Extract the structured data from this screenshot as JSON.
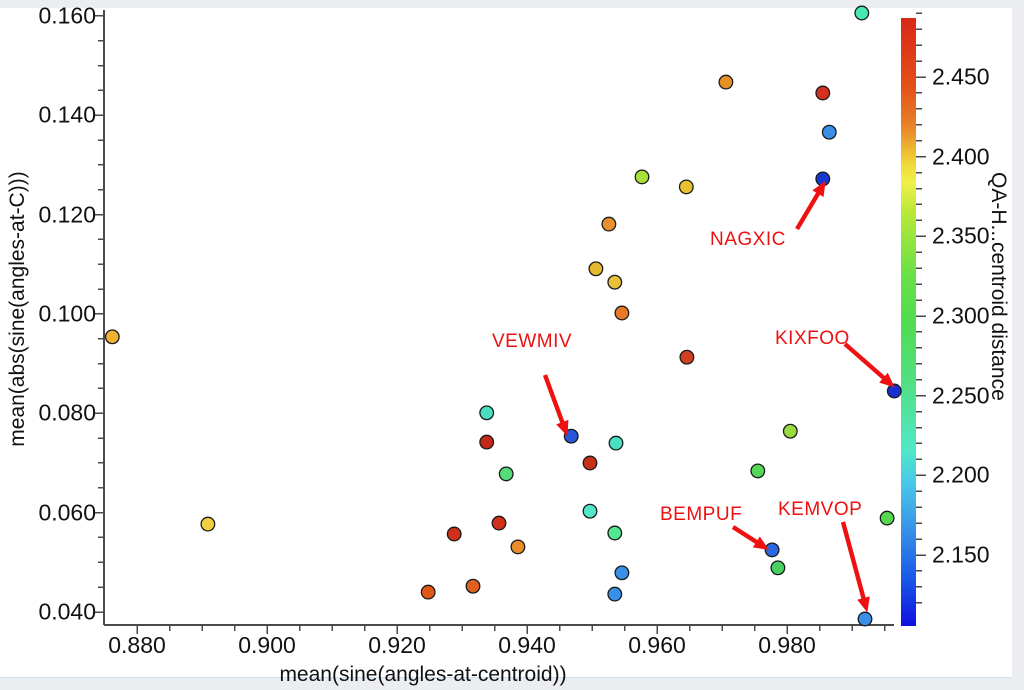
{
  "chart_data": {
    "type": "scatter",
    "xlabel": "mean(sine(angles-at-centroid))",
    "ylabel": "mean(abs(sine(angles-at-C)))",
    "colorbar_label": "QA-H...centroid distance",
    "xlim": [
      0.875,
      0.997
    ],
    "ylim": [
      0.038,
      0.162
    ],
    "grid": false,
    "legend": "colorbar-right",
    "x_ticks": [
      0.88,
      0.9,
      0.92,
      0.94,
      0.96,
      0.98
    ],
    "x_tick_labels": [
      "0.880",
      "0.900",
      "0.920",
      "0.940",
      "0.960",
      "0.980"
    ],
    "y_ticks": [
      0.04,
      0.06,
      0.08,
      0.1,
      0.12,
      0.14,
      0.16
    ],
    "y_tick_labels": [
      "0.040",
      "0.060",
      "0.080",
      "0.100",
      "0.120",
      "0.140",
      "0.160"
    ],
    "colorbar": {
      "min": 2.11,
      "max": 2.492,
      "tick_values": [
        2.15,
        2.2,
        2.25,
        2.3,
        2.35,
        2.4,
        2.45
      ],
      "tick_labels": [
        "2.150",
        "2.200",
        "2.250",
        "2.300",
        "2.350",
        "2.400",
        "2.450"
      ],
      "minor_step": 0.01,
      "colormap": "jet (blue-cyan-green-yellow-orange-red)"
    },
    "points": [
      {
        "x": 0.8762,
        "y": 0.0954,
        "c": 2.42,
        "color": "#F0B030"
      },
      {
        "x": 0.8909,
        "y": 0.0577,
        "c": 2.4,
        "color": "#F0D040"
      },
      {
        "x": 0.9248,
        "y": 0.044,
        "c": 2.45,
        "color": "#E05818"
      },
      {
        "x": 0.9288,
        "y": 0.0557,
        "c": 2.46,
        "color": "#D03018"
      },
      {
        "x": 0.9317,
        "y": 0.0452,
        "c": 2.45,
        "color": "#E06020"
      },
      {
        "x": 0.9338,
        "y": 0.0801,
        "c": 2.21,
        "color": "#48E0C0"
      },
      {
        "x": 0.9338,
        "y": 0.0742,
        "c": 2.47,
        "color": "#C42818"
      },
      {
        "x": 0.9357,
        "y": 0.0579,
        "c": 2.46,
        "color": "#D03018"
      },
      {
        "x": 0.9368,
        "y": 0.0678,
        "c": 2.28,
        "color": "#55DC78"
      },
      {
        "x": 0.9386,
        "y": 0.0531,
        "c": 2.43,
        "color": "#E88D28"
      },
      {
        "x": 0.9468,
        "y": 0.0754,
        "c": 2.15,
        "color": "#2858D8",
        "name": "VEWMIV"
      },
      {
        "x": 0.9497,
        "y": 0.07,
        "c": 2.46,
        "color": "#C83018"
      },
      {
        "x": 0.9497,
        "y": 0.0603,
        "c": 2.21,
        "color": "#50E8C8"
      },
      {
        "x": 0.9506,
        "y": 0.1091,
        "c": 2.41,
        "color": "#E8B830"
      },
      {
        "x": 0.9526,
        "y": 0.1181,
        "c": 2.43,
        "color": "#E89030"
      },
      {
        "x": 0.9535,
        "y": 0.1064,
        "c": 2.41,
        "color": "#E8C038"
      },
      {
        "x": 0.9535,
        "y": 0.0559,
        "c": 2.25,
        "color": "#50E890"
      },
      {
        "x": 0.9535,
        "y": 0.0436,
        "c": 2.17,
        "color": "#3890E8"
      },
      {
        "x": 0.9537,
        "y": 0.074,
        "c": 2.21,
        "color": "#48E0C0"
      },
      {
        "x": 0.9546,
        "y": 0.1002,
        "c": 2.44,
        "color": "#E87828"
      },
      {
        "x": 0.9546,
        "y": 0.0479,
        "c": 2.17,
        "color": "#3890E8"
      },
      {
        "x": 0.9577,
        "y": 0.1276,
        "c": 2.37,
        "color": "#A6E038"
      },
      {
        "x": 0.9645,
        "y": 0.1256,
        "c": 2.41,
        "color": "#E8C030"
      },
      {
        "x": 0.9646,
        "y": 0.0913,
        "c": 2.46,
        "color": "#D04020"
      },
      {
        "x": 0.9706,
        "y": 0.1467,
        "c": 2.43,
        "color": "#E89028"
      },
      {
        "x": 0.9755,
        "y": 0.0684,
        "c": 2.31,
        "color": "#55D858"
      },
      {
        "x": 0.9777,
        "y": 0.0525,
        "c": 2.16,
        "color": "#2868E0",
        "name": "BEMPUF"
      },
      {
        "x": 0.9786,
        "y": 0.0489,
        "c": 2.3,
        "color": "#48D060"
      },
      {
        "x": 0.9805,
        "y": 0.0764,
        "c": 2.35,
        "color": "#98DC40"
      },
      {
        "x": 0.9855,
        "y": 0.1445,
        "c": 2.47,
        "color": "#D83020"
      },
      {
        "x": 0.9855,
        "y": 0.1272,
        "c": 2.12,
        "color": "#1838D0",
        "name": "NAGXIC"
      },
      {
        "x": 0.9865,
        "y": 0.1366,
        "c": 2.17,
        "color": "#3890E8"
      },
      {
        "x": 0.9915,
        "y": 0.1606,
        "c": 2.23,
        "color": "#48E8B0"
      },
      {
        "x": 0.992,
        "y": 0.0386,
        "c": 2.17,
        "color": "#3890E8",
        "name": "KEMVOP"
      },
      {
        "x": 0.9954,
        "y": 0.0589,
        "c": 2.32,
        "color": "#55D850"
      },
      {
        "x": 0.9965,
        "y": 0.0845,
        "c": 2.12,
        "color": "#1830D0",
        "name": "KIXFOO"
      }
    ],
    "annotations": [
      {
        "label": "NAGXIC",
        "target_x": 0.9855,
        "target_y": 0.1272
      },
      {
        "label": "VEWMIV",
        "target_x": 0.9468,
        "target_y": 0.0754
      },
      {
        "label": "KIXFOO",
        "target_x": 0.9965,
        "target_y": 0.0845
      },
      {
        "label": "BEMPUF",
        "target_x": 0.9777,
        "target_y": 0.0525
      },
      {
        "label": "KEMVOP",
        "target_x": 0.992,
        "target_y": 0.0386
      }
    ],
    "annotation_color": "#ee1111"
  }
}
